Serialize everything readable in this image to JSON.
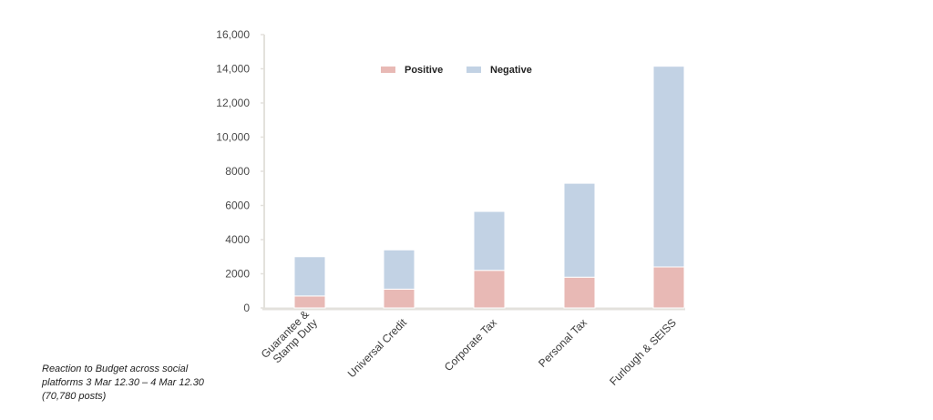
{
  "chart_data": {
    "type": "bar",
    "stacked": true,
    "categories": [
      [
        "Guarantee &",
        "Stamp Duty"
      ],
      [
        "Universal Credit"
      ],
      [
        "Corporate Tax"
      ],
      [
        "Personal Tax"
      ],
      [
        "Furlough & SEISS"
      ]
    ],
    "series": [
      {
        "name": "Positive",
        "color": "#e8b9b5",
        "values": [
          700,
          1100,
          2200,
          1800,
          2400
        ]
      },
      {
        "name": "Negative",
        "color": "#c2d2e4",
        "values": [
          2300,
          2300,
          3450,
          5500,
          11750
        ]
      }
    ],
    "ylim": [
      0,
      16000
    ],
    "yticks": [
      {
        "value": 0,
        "label": "0"
      },
      {
        "value": 2000,
        "label": "2000"
      },
      {
        "value": 4000,
        "label": "4000"
      },
      {
        "value": 6000,
        "label": "6000"
      },
      {
        "value": 8000,
        "label": "8000"
      },
      {
        "value": 10000,
        "label": "10,000"
      },
      {
        "value": 12000,
        "label": "12,000"
      },
      {
        "value": 14000,
        "label": "14,000"
      },
      {
        "value": 16000,
        "label": "16,000"
      }
    ],
    "legend_position": "top-center",
    "grid": false
  },
  "caption": {
    "line1": "Reaction to Budget across social",
    "line2": "platforms  3 Mar 12.30 – 4 Mar 12.30",
    "line3": "(70,780 posts)"
  }
}
